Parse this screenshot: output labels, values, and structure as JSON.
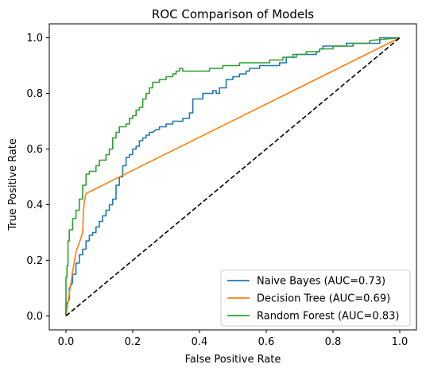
{
  "chart_data": {
    "type": "line",
    "title": "ROC Comparison of Models",
    "xlabel": "False Positive Rate",
    "ylabel": "True Positive Rate",
    "xlim": [
      -0.05,
      1.05
    ],
    "ylim": [
      -0.05,
      1.05
    ],
    "xticks": [
      0.0,
      0.2,
      0.4,
      0.6,
      0.8,
      1.0
    ],
    "yticks": [
      0.0,
      0.2,
      0.4,
      0.6,
      0.8,
      1.0
    ],
    "tick_labels": [
      "0.0",
      "0.2",
      "0.4",
      "0.6",
      "0.8",
      "1.0"
    ],
    "grid": false,
    "legend_position": "lower-right",
    "reference_line": {
      "x": [
        0,
        1
      ],
      "y": [
        0,
        1
      ],
      "style": "dashed",
      "color": "#000000"
    },
    "series": [
      {
        "name": "Naive Bayes (AUC=0.73)",
        "color": "#1f77b4",
        "x": [
          0.0,
          0.0,
          0.01,
          0.01,
          0.02,
          0.02,
          0.03,
          0.03,
          0.04,
          0.04,
          0.05,
          0.05,
          0.06,
          0.06,
          0.07,
          0.07,
          0.08,
          0.08,
          0.09,
          0.09,
          0.1,
          0.1,
          0.11,
          0.11,
          0.12,
          0.12,
          0.13,
          0.13,
          0.14,
          0.14,
          0.15,
          0.15,
          0.16,
          0.16,
          0.17,
          0.17,
          0.18,
          0.18,
          0.19,
          0.19,
          0.2,
          0.2,
          0.21,
          0.21,
          0.22,
          0.22,
          0.23,
          0.23,
          0.24,
          0.24,
          0.25,
          0.25,
          0.26,
          0.27,
          0.28,
          0.28,
          0.3,
          0.3,
          0.32,
          0.32,
          0.35,
          0.35,
          0.37,
          0.37,
          0.38,
          0.38,
          0.41,
          0.41,
          0.44,
          0.44,
          0.45,
          0.45,
          0.46,
          0.46,
          0.48,
          0.48,
          0.5,
          0.5,
          0.52,
          0.52,
          0.54,
          0.54,
          0.55,
          0.55,
          0.58,
          0.58,
          0.64,
          0.64,
          0.66,
          0.66,
          0.69,
          0.69,
          0.75,
          0.75,
          0.76,
          0.76,
          0.77,
          0.77,
          0.84,
          0.84,
          0.94,
          0.94,
          1.0
        ],
        "y": [
          0.0,
          0.04,
          0.06,
          0.1,
          0.12,
          0.15,
          0.15,
          0.19,
          0.19,
          0.22,
          0.22,
          0.24,
          0.24,
          0.27,
          0.27,
          0.29,
          0.29,
          0.3,
          0.3,
          0.32,
          0.32,
          0.34,
          0.34,
          0.36,
          0.36,
          0.38,
          0.38,
          0.4,
          0.4,
          0.42,
          0.42,
          0.47,
          0.47,
          0.5,
          0.5,
          0.54,
          0.54,
          0.57,
          0.57,
          0.58,
          0.58,
          0.6,
          0.6,
          0.61,
          0.61,
          0.63,
          0.63,
          0.64,
          0.64,
          0.65,
          0.65,
          0.66,
          0.66,
          0.67,
          0.67,
          0.68,
          0.68,
          0.69,
          0.69,
          0.7,
          0.7,
          0.71,
          0.71,
          0.73,
          0.73,
          0.78,
          0.78,
          0.8,
          0.8,
          0.81,
          0.81,
          0.8,
          0.8,
          0.82,
          0.82,
          0.85,
          0.85,
          0.86,
          0.86,
          0.87,
          0.87,
          0.88,
          0.88,
          0.89,
          0.89,
          0.9,
          0.9,
          0.91,
          0.91,
          0.93,
          0.93,
          0.94,
          0.94,
          0.95,
          0.95,
          0.96,
          0.96,
          0.97,
          0.97,
          0.98,
          0.98,
          1.0,
          1.0
        ]
      },
      {
        "name": "Decision Tree (AUC=0.69)",
        "color": "#ff7f0e",
        "x": [
          0.0,
          0.01,
          0.02,
          0.03,
          0.045,
          0.05,
          0.052,
          0.055,
          0.06,
          1.0
        ],
        "y": [
          0.0,
          0.08,
          0.16,
          0.23,
          0.28,
          0.3,
          0.37,
          0.41,
          0.44,
          1.0
        ]
      },
      {
        "name": "Random Forest (AUC=0.83)",
        "color": "#2ca02c",
        "x": [
          0.0,
          0.0,
          0.003,
          0.003,
          0.006,
          0.006,
          0.01,
          0.01,
          0.02,
          0.02,
          0.03,
          0.03,
          0.04,
          0.04,
          0.05,
          0.05,
          0.06,
          0.06,
          0.07,
          0.07,
          0.09,
          0.09,
          0.1,
          0.1,
          0.12,
          0.12,
          0.13,
          0.13,
          0.14,
          0.14,
          0.15,
          0.15,
          0.16,
          0.16,
          0.18,
          0.18,
          0.19,
          0.19,
          0.2,
          0.2,
          0.21,
          0.21,
          0.22,
          0.22,
          0.23,
          0.23,
          0.24,
          0.24,
          0.25,
          0.25,
          0.26,
          0.26,
          0.28,
          0.28,
          0.3,
          0.3,
          0.32,
          0.32,
          0.33,
          0.33,
          0.34,
          0.34,
          0.35,
          0.35,
          0.43,
          0.43,
          0.47,
          0.47,
          0.52,
          0.52,
          0.61,
          0.61,
          0.65,
          0.65,
          0.68,
          0.68,
          0.72,
          0.72,
          0.76,
          0.76,
          0.8,
          0.8,
          0.86,
          0.86,
          0.91,
          0.91,
          1.0
        ],
        "y": [
          0.0,
          0.14,
          0.14,
          0.18,
          0.18,
          0.27,
          0.27,
          0.31,
          0.31,
          0.35,
          0.35,
          0.38,
          0.38,
          0.42,
          0.42,
          0.47,
          0.47,
          0.51,
          0.51,
          0.52,
          0.52,
          0.54,
          0.54,
          0.56,
          0.56,
          0.58,
          0.58,
          0.6,
          0.6,
          0.64,
          0.64,
          0.66,
          0.66,
          0.68,
          0.68,
          0.69,
          0.69,
          0.71,
          0.71,
          0.72,
          0.72,
          0.74,
          0.74,
          0.75,
          0.75,
          0.78,
          0.78,
          0.8,
          0.8,
          0.82,
          0.82,
          0.84,
          0.84,
          0.85,
          0.85,
          0.86,
          0.86,
          0.87,
          0.87,
          0.88,
          0.88,
          0.89,
          0.89,
          0.88,
          0.88,
          0.89,
          0.89,
          0.9,
          0.9,
          0.91,
          0.91,
          0.92,
          0.92,
          0.93,
          0.93,
          0.94,
          0.94,
          0.95,
          0.95,
          0.96,
          0.96,
          0.97,
          0.97,
          0.98,
          0.98,
          0.99,
          1.0
        ]
      }
    ]
  }
}
